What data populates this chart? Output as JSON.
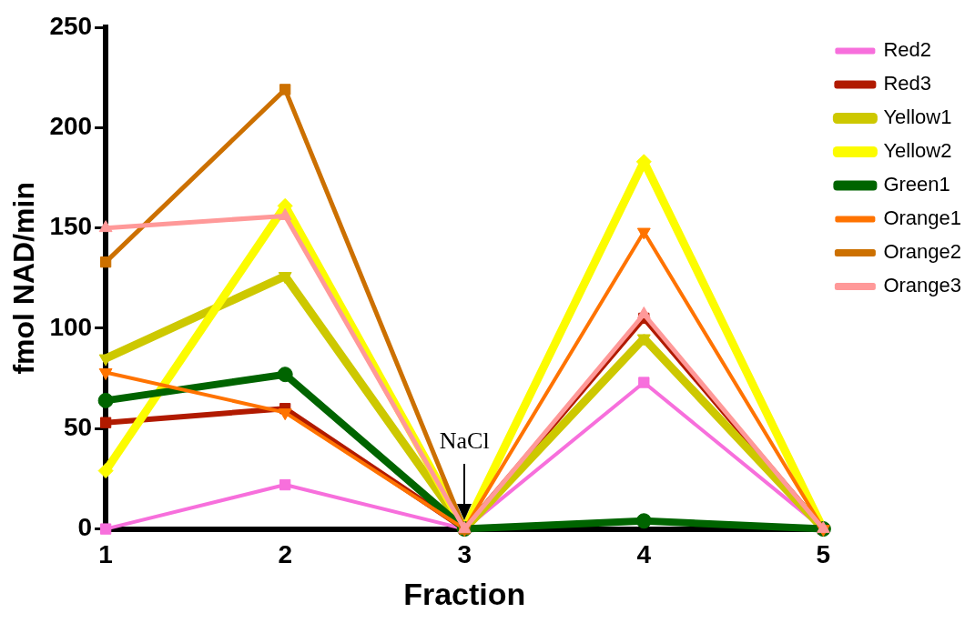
{
  "chart_data": {
    "type": "line",
    "xlabel": "Fraction",
    "ylabel": "fmol NAD/min",
    "x": [
      1,
      2,
      3,
      4,
      5
    ],
    "xlim": [
      1,
      5
    ],
    "xticks": [
      1,
      2,
      3,
      4,
      5
    ],
    "ylim": [
      0,
      250
    ],
    "yticks": [
      0,
      50,
      100,
      150,
      200,
      250
    ],
    "grid": false,
    "legend": "top right",
    "line_style": "solid",
    "series": [
      {
        "name": "Red2",
        "color": "#f76fdc",
        "marker": "square",
        "values": [
          0,
          22,
          0,
          73,
          0
        ]
      },
      {
        "name": "Red3",
        "color": "#b11a00",
        "marker": "square",
        "values": [
          53,
          60,
          0,
          105,
          0
        ]
      },
      {
        "name": "Yellow1",
        "color": "#cdc800",
        "marker": "triangle-down",
        "values": [
          85,
          126,
          0,
          95,
          0
        ]
      },
      {
        "name": "Yellow2",
        "color": "#fcfc00",
        "marker": "diamond",
        "values": [
          29,
          161,
          0,
          183,
          0
        ]
      },
      {
        "name": "Green1",
        "color": "#006400",
        "marker": "circle",
        "values": [
          64,
          77,
          0,
          4,
          0
        ]
      },
      {
        "name": "Orange1",
        "color": "#ff7300",
        "marker": "triangle-down",
        "values": [
          78,
          58,
          0,
          148,
          0
        ]
      },
      {
        "name": "Orange2",
        "color": "#cc7000",
        "marker": "square",
        "values": [
          133,
          219,
          0,
          null,
          null
        ]
      },
      {
        "name": "Orange3",
        "color": "#ff9999",
        "marker": "triangle",
        "values": [
          150,
          156,
          0,
          107,
          0
        ]
      }
    ],
    "annotations": [
      "NaCl"
    ]
  }
}
